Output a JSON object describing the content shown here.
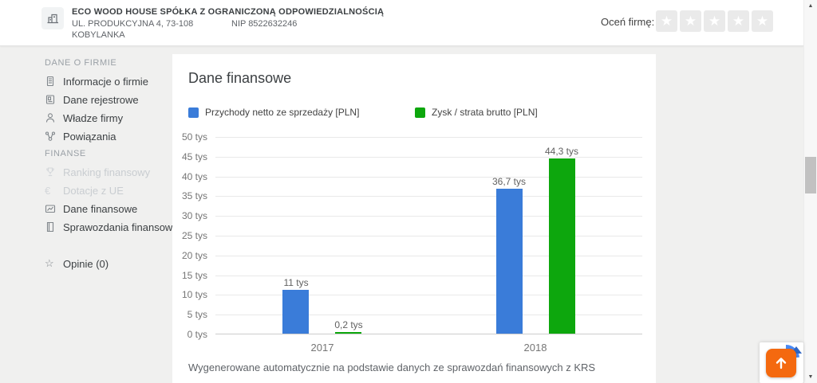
{
  "header": {
    "company_name": "ECO WOOD HOUSE SPÓŁKA Z OGRANICZONĄ ODPOWIEDZIALNOŚCIĄ",
    "address_line1": "UL. PRODUKCYJNA 4, 73-108",
    "address_line2": "KOBYLANKA",
    "nip": "NIP 8522632246",
    "rate_label": "Oceń firmę:",
    "stars_count": 5
  },
  "sidebar": {
    "sections": [
      {
        "label": "DANE O FIRMIE",
        "items": [
          {
            "label": "Informacje o firmie",
            "icon": "document-icon",
            "disabled": false
          },
          {
            "label": "Dane rejestrowe",
            "icon": "registry-icon",
            "disabled": false
          },
          {
            "label": "Władze firmy",
            "icon": "person-icon",
            "disabled": false
          },
          {
            "label": "Powiązania",
            "icon": "connections-icon",
            "disabled": false
          }
        ]
      },
      {
        "label": "FINANSE",
        "items": [
          {
            "label": "Ranking finansowy",
            "icon": "trophy-icon",
            "disabled": true
          },
          {
            "label": "Dotacje z UE",
            "icon": "euro-icon",
            "disabled": true
          },
          {
            "label": "Dane finansowe",
            "icon": "finance-card-icon",
            "disabled": false
          },
          {
            "label": "Sprawozdania finansowe",
            "icon": "report-icon",
            "disabled": false
          }
        ]
      }
    ],
    "opinions_label": "Opinie (0)"
  },
  "main": {
    "title": "Dane finansowe",
    "footnote": "Wygenerowane automatycznie na podstawie danych ze sprawozdań finansowych z KRS"
  },
  "chart_data": {
    "type": "bar",
    "categories": [
      "2017",
      "2018"
    ],
    "series": [
      {
        "name": "Przychody netto ze sprzedaży [PLN]",
        "color": "#3a7cd9",
        "values": [
          11,
          36.7
        ],
        "labels": [
          "11 tys",
          "36,7 tys"
        ]
      },
      {
        "name": "Zysk / strata brutto [PLN]",
        "color": "#0da70d",
        "values": [
          0.2,
          44.3
        ],
        "labels": [
          "0,2 tys",
          "44,3 tys"
        ]
      }
    ],
    "ylim": [
      0,
      50
    ],
    "ytick_step": 5,
    "ytick_suffix": " tys",
    "grid": true,
    "legend_position": "top",
    "unit": "tys PLN"
  },
  "colors": {
    "accent_orange": "#f4690f",
    "recaptcha_blue": "#4a8af4",
    "recaptcha_dark_blue": "#2f66c4"
  }
}
